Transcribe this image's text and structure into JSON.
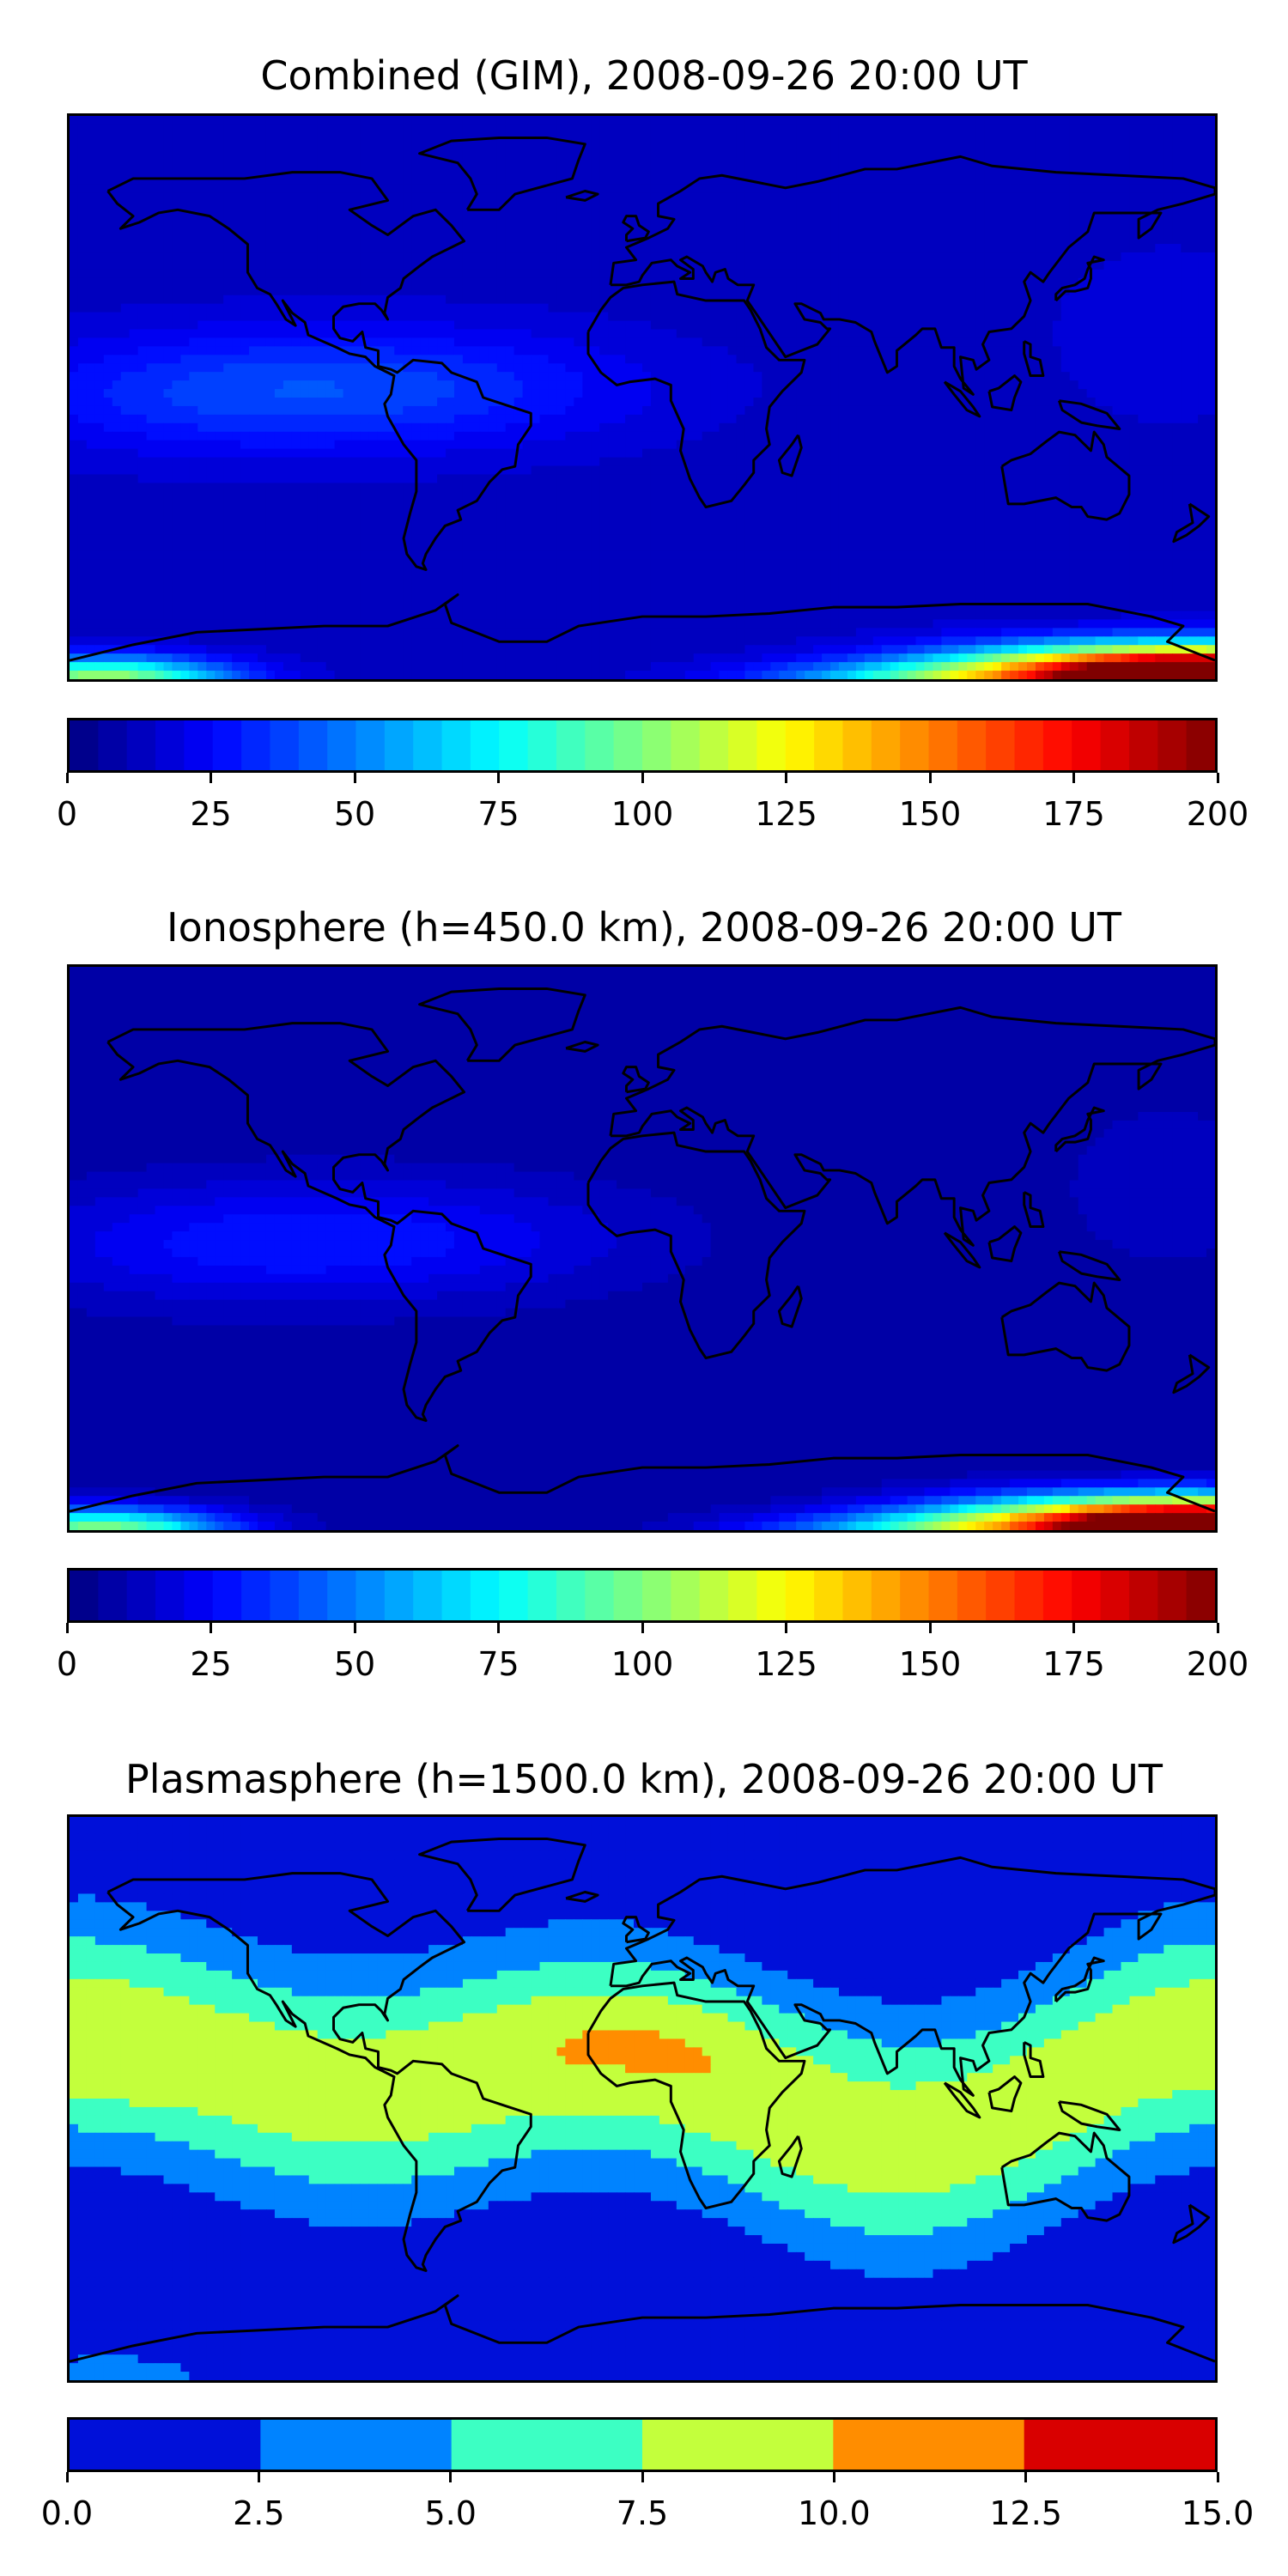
{
  "chart_data": [
    {
      "type": "heatmap",
      "title": "Combined (GIM), 2008-09-26 20:00 UT",
      "colormap": "jet",
      "colorbar": {
        "ticks": [
          "0",
          "25",
          "50",
          "75",
          "100",
          "125",
          "150",
          "175",
          "200"
        ],
        "range": [
          0,
          200
        ],
        "levels": 40
      },
      "map": "world coastlines, longitude -180 to 180, latitude -90 to 90",
      "features": [
        {
          "region": "most of globe",
          "value": 12
        },
        {
          "region": "tropical Pacific / South America band",
          "value": 35
        },
        {
          "region": "southern high latitudes near 165E, 80S",
          "value": 185
        },
        {
          "region": "southern high latitudes near 160W, 85S",
          "value": 110
        }
      ]
    },
    {
      "type": "heatmap",
      "title": "Ionosphere  (h=450.0 km), 2008-09-26 20:00 UT",
      "colormap": "jet",
      "colorbar": {
        "ticks": [
          "0",
          "25",
          "50",
          "75",
          "100",
          "125",
          "150",
          "175",
          "200"
        ],
        "range": [
          0,
          200
        ],
        "levels": 40
      },
      "map": "world coastlines, longitude -180 to 180, latitude -90 to 90",
      "features": [
        {
          "region": "most of globe",
          "value": 8
        },
        {
          "region": "tropical Pacific / South America band",
          "value": 28
        },
        {
          "region": "southern high latitudes near 165E, 80S",
          "value": 185
        },
        {
          "region": "southern high latitudes near 160W, 85S",
          "value": 110
        }
      ]
    },
    {
      "type": "heatmap",
      "title": "Plasmasphere (h=1500.0 km), 2008-09-26 20:00 UT",
      "colormap": "jet",
      "colorbar": {
        "ticks": [
          "0.0",
          "2.5",
          "5.0",
          "7.5",
          "10.0",
          "12.5",
          "15.0"
        ],
        "range": [
          0,
          15
        ],
        "levels": 6
      },
      "colorbar_colors": [
        "#0010d9",
        "#0083ff",
        "#3cffc3",
        "#c3ff3c",
        "#ff8d00",
        "#d90000"
      ],
      "map": "world coastlines, longitude -180 to 180, latitude -90 to 90",
      "features": [
        {
          "region": "high latitudes north and south",
          "value": 1.25
        },
        {
          "region": "mid-latitude bands",
          "value": 3.75
        },
        {
          "region": "low latitudes",
          "value": 6.25
        },
        {
          "region": "equatorial Africa / Indian Ocean, central Pacific",
          "value": 8.75
        }
      ]
    }
  ]
}
